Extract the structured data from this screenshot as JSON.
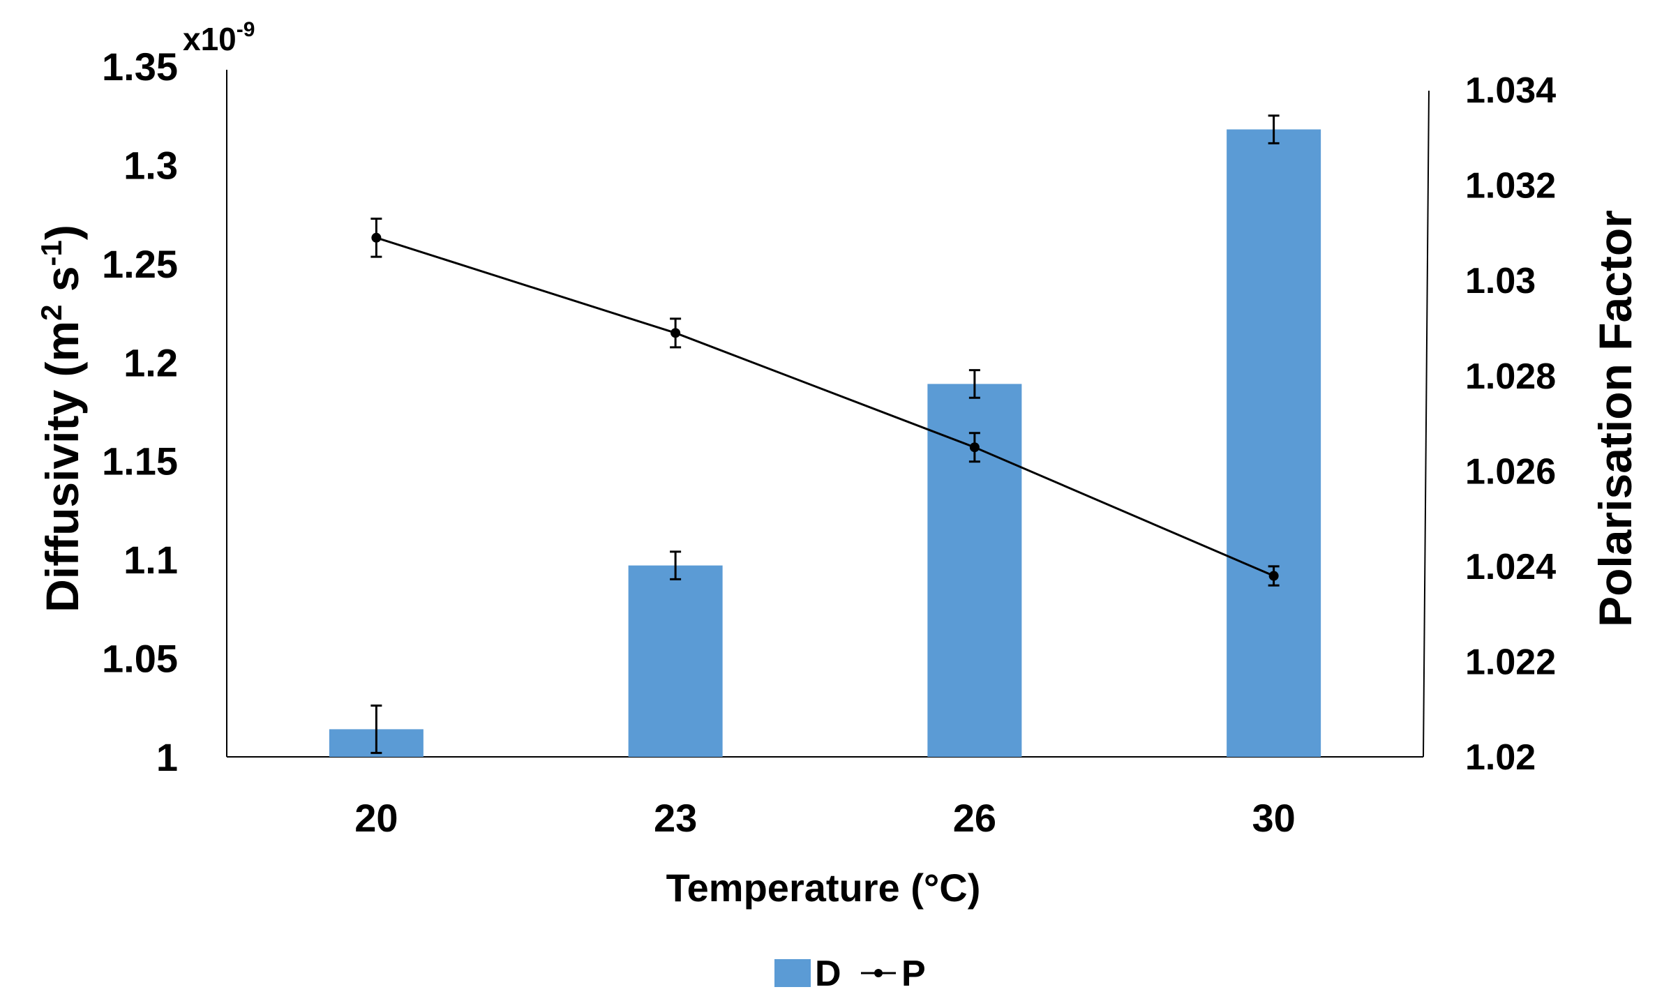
{
  "chart_data": {
    "type": "bar+line",
    "categories": [
      "20",
      "23",
      "26",
      "30"
    ],
    "xlabel": "Temperature (°C)",
    "ylabel_left": {
      "prefix": "Diffusivity (m",
      "sup1": "2",
      "middle": " s",
      "sup2": "-1",
      "suffix": ")"
    },
    "left_multiplier": {
      "base": "x10",
      "exp": "-9"
    },
    "ylim_left": [
      1.0,
      1.35
    ],
    "yticks_left": [
      "1",
      "1.05",
      "1.1",
      "1.15",
      "1.2",
      "1.25",
      "1.3",
      "1.35"
    ],
    "ylabel_right": "Polarisation Factor",
    "ylim_right": [
      1.02,
      1.0345
    ],
    "yticks_right": [
      "1.02",
      "1.022",
      "1.024",
      "1.026",
      "1.028",
      "1.03",
      "1.032",
      "1.034"
    ],
    "series": [
      {
        "name": "D",
        "kind": "bar",
        "axis": "left",
        "color": "#5b9bd5",
        "values": [
          1.014,
          1.097,
          1.189,
          1.318
        ],
        "errors": [
          0.012,
          0.007,
          0.007,
          0.007
        ]
      },
      {
        "name": "P",
        "kind": "line",
        "axis": "right",
        "color": "#000000",
        "values": [
          1.0309,
          1.0289,
          1.0265,
          1.0238
        ],
        "errors": [
          0.0004,
          0.0003,
          0.0003,
          0.0002
        ]
      }
    ],
    "legend": {
      "position": "bottom",
      "entries": [
        "D",
        "P"
      ]
    }
  }
}
